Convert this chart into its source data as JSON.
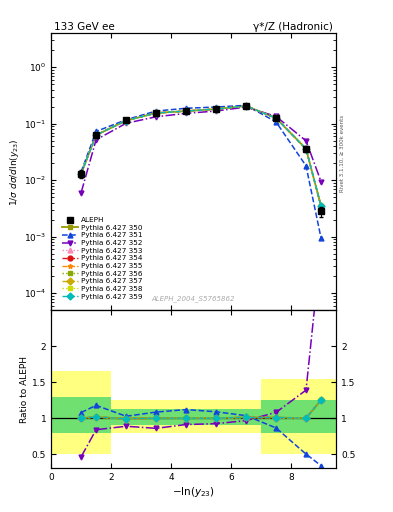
{
  "title_left": "133 GeV ee",
  "title_right": "γ*/Z (Hadronic)",
  "right_label": "Rivet 3.1.10, ≥ 300k events",
  "watermark": "ALEPH_2004_S5765862",
  "xlabel": "-ln(y_{23})",
  "ylabel_top": "1/σ dσ/dln(y_{23})",
  "ylabel_bot": "Ratio to ALEPH",
  "xmin": 0,
  "xmax": 9.5,
  "ylog_min": 5e-05,
  "ylog_max": 4.0,
  "ratio_ymin": 0.3,
  "ratio_ymax": 2.5,
  "aleph_x": [
    1.0,
    1.5,
    2.5,
    3.5,
    4.5,
    5.5,
    6.5,
    7.5,
    8.5,
    9.0
  ],
  "aleph_y": [
    0.013,
    0.062,
    0.115,
    0.155,
    0.168,
    0.182,
    0.205,
    0.125,
    0.036,
    0.0028
  ],
  "aleph_err": [
    0.002,
    0.005,
    0.006,
    0.007,
    0.007,
    0.008,
    0.009,
    0.009,
    0.004,
    0.0006
  ],
  "p350_x": [
    1.0,
    1.5,
    2.5,
    3.5,
    4.5,
    5.5,
    6.5,
    7.5,
    8.5,
    9.0
  ],
  "p350_y": [
    0.013,
    0.063,
    0.114,
    0.155,
    0.168,
    0.182,
    0.207,
    0.126,
    0.036,
    0.0035
  ],
  "p351_x": [
    1.0,
    1.5,
    2.5,
    3.5,
    4.5,
    5.5,
    6.5,
    7.5,
    8.5,
    9.0
  ],
  "p351_y": [
    0.014,
    0.073,
    0.118,
    0.168,
    0.188,
    0.198,
    0.212,
    0.108,
    0.018,
    0.00095
  ],
  "p352_x": [
    1.0,
    1.5,
    2.5,
    3.5,
    4.5,
    5.5,
    6.5,
    7.5,
    8.5,
    9.0
  ],
  "p352_y": [
    0.006,
    0.052,
    0.102,
    0.133,
    0.153,
    0.168,
    0.198,
    0.135,
    0.05,
    0.0095
  ],
  "p353_x": [
    1.0,
    1.5,
    2.5,
    3.5,
    4.5,
    5.5,
    6.5,
    7.5,
    8.5,
    9.0
  ],
  "p353_y": [
    0.013,
    0.063,
    0.114,
    0.155,
    0.168,
    0.182,
    0.207,
    0.126,
    0.036,
    0.0035
  ],
  "p354_x": [
    1.0,
    1.5,
    2.5,
    3.5,
    4.5,
    5.5,
    6.5,
    7.5,
    8.5,
    9.0
  ],
  "p354_y": [
    0.013,
    0.063,
    0.114,
    0.155,
    0.168,
    0.182,
    0.207,
    0.126,
    0.036,
    0.0035
  ],
  "p355_x": [
    1.0,
    1.5,
    2.5,
    3.5,
    4.5,
    5.5,
    6.5,
    7.5,
    8.5,
    9.0
  ],
  "p355_y": [
    0.013,
    0.063,
    0.114,
    0.155,
    0.168,
    0.182,
    0.207,
    0.126,
    0.036,
    0.0035
  ],
  "p356_x": [
    1.0,
    1.5,
    2.5,
    3.5,
    4.5,
    5.5,
    6.5,
    7.5,
    8.5,
    9.0
  ],
  "p356_y": [
    0.013,
    0.063,
    0.114,
    0.155,
    0.168,
    0.182,
    0.207,
    0.126,
    0.036,
    0.0035
  ],
  "p357_x": [
    1.0,
    1.5,
    2.5,
    3.5,
    4.5,
    5.5,
    6.5,
    7.5,
    8.5,
    9.0
  ],
  "p357_y": [
    0.013,
    0.063,
    0.114,
    0.155,
    0.168,
    0.182,
    0.207,
    0.126,
    0.036,
    0.0035
  ],
  "p358_x": [
    1.0,
    1.5,
    2.5,
    3.5,
    4.5,
    5.5,
    6.5,
    7.5,
    8.5,
    9.0
  ],
  "p358_y": [
    0.013,
    0.063,
    0.114,
    0.155,
    0.168,
    0.182,
    0.207,
    0.126,
    0.036,
    0.0035
  ],
  "p359_x": [
    1.0,
    1.5,
    2.5,
    3.5,
    4.5,
    5.5,
    6.5,
    7.5,
    8.5,
    9.0
  ],
  "p359_y": [
    0.013,
    0.063,
    0.114,
    0.155,
    0.168,
    0.182,
    0.207,
    0.126,
    0.036,
    0.0035
  ],
  "band_edges": [
    0.0,
    1.0,
    2.0,
    3.0,
    4.0,
    5.0,
    6.0,
    7.0,
    7.5,
    9.5
  ],
  "band_yellow_lo": [
    0.5,
    0.5,
    0.8,
    0.8,
    0.8,
    0.8,
    0.8,
    0.5,
    0.5,
    0.5
  ],
  "band_yellow_hi": [
    1.65,
    1.65,
    1.25,
    1.25,
    1.25,
    1.25,
    1.25,
    1.55,
    1.55,
    1.55
  ],
  "band_green_lo": [
    0.8,
    0.8,
    0.9,
    0.9,
    0.9,
    0.9,
    0.9,
    0.8,
    0.8,
    0.8
  ],
  "band_green_hi": [
    1.3,
    1.3,
    1.12,
    1.12,
    1.12,
    1.12,
    1.12,
    1.25,
    1.25,
    1.25
  ],
  "color_aleph": "#000000",
  "color_350": "#999900",
  "color_351": "#1144dd",
  "color_352": "#7700bb",
  "color_353": "#ff88bb",
  "color_354": "#dd1111",
  "color_355": "#ff8800",
  "color_356": "#88aa00",
  "color_357": "#ccaa00",
  "color_358": "#ccdd00",
  "color_359": "#00bbbb",
  "series_styles": [
    [
      "350",
      "#999900",
      "s",
      "-",
      1.3,
      "Pythia 6.427 350"
    ],
    [
      "351",
      "#1144dd",
      "^",
      "--",
      1.1,
      "Pythia 6.427 351"
    ],
    [
      "352",
      "#7700bb",
      "v",
      "-.",
      1.1,
      "Pythia 6.427 352"
    ],
    [
      "353",
      "#ff88bb",
      "^",
      ":",
      1.0,
      "Pythia 6.427 353"
    ],
    [
      "354",
      "#dd1111",
      "o",
      "--",
      1.0,
      "Pythia 6.427 354"
    ],
    [
      "355",
      "#ff8800",
      "*",
      "--",
      1.0,
      "Pythia 6.427 355"
    ],
    [
      "356",
      "#88aa00",
      "s",
      ":",
      1.0,
      "Pythia 6.427 356"
    ],
    [
      "357",
      "#ccaa00",
      "D",
      "--",
      1.0,
      "Pythia 6.427 357"
    ],
    [
      "358",
      "#ccdd00",
      "s",
      ":",
      1.0,
      "Pythia 6.427 358"
    ],
    [
      "359",
      "#00bbbb",
      "D",
      "--",
      1.0,
      "Pythia 6.427 359"
    ]
  ]
}
